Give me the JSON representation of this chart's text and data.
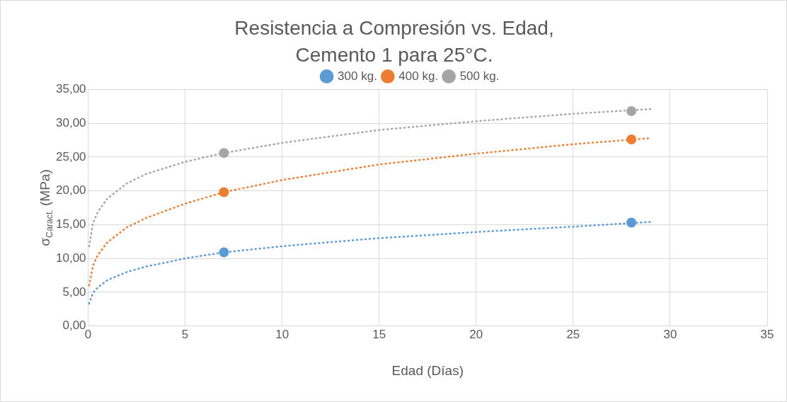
{
  "chart_data": {
    "type": "scatter",
    "title": "Resistencia a Compresión vs. Edad,\nCemento 1 para 25°C.",
    "xlabel": "Edad (Días)",
    "ylabel": "σ$_{Caract.}$ (MPa)",
    "xlim": [
      0,
      35
    ],
    "xticks": [
      0,
      5,
      10,
      15,
      20,
      25,
      30,
      35
    ],
    "ylim": [
      0,
      35
    ],
    "yticks": [
      {
        "value": 0,
        "label": "0,00"
      },
      {
        "value": 5,
        "label": "5,00"
      },
      {
        "value": 10,
        "label": "10,00"
      },
      {
        "value": 15,
        "label": "15,00"
      },
      {
        "value": 20,
        "label": "20,00"
      },
      {
        "value": 25,
        "label": "25,00"
      },
      {
        "value": 30,
        "label": "30,00"
      },
      {
        "value": 35,
        "label": "35,00"
      }
    ],
    "grid": true,
    "legend": "top",
    "marker": "circle",
    "series": [
      {
        "name": "300 kg.",
        "color": "#5b9bd5",
        "x": [
          7,
          28
        ],
        "values": [
          10.9,
          15.3
        ]
      },
      {
        "name": "400 kg.",
        "color": "#ed7d31",
        "x": [
          7,
          28
        ],
        "values": [
          19.8,
          27.6
        ]
      },
      {
        "name": "500 kg.",
        "color": "#a5a5a5",
        "x": [
          7,
          28
        ],
        "values": [
          25.6,
          31.8
        ]
      },
      {
        "type": "line",
        "color": "#5b9bd5",
        "line_style": "dotted",
        "marker": "none",
        "x": [
          0.05,
          0.25,
          0.5,
          1,
          2,
          3,
          5,
          7,
          10,
          15,
          20,
          25,
          29
        ],
        "values": [
          3.3,
          4.9,
          5.7,
          6.8,
          8.0,
          8.8,
          10.0,
          10.9,
          11.8,
          13.0,
          13.9,
          14.7,
          15.4
        ]
      },
      {
        "type": "line",
        "color": "#ed7d31",
        "line_style": "dotted",
        "marker": "none",
        "x": [
          0.05,
          0.25,
          0.5,
          1,
          2,
          3,
          5,
          7,
          10,
          15,
          20,
          25,
          29
        ],
        "values": [
          6.0,
          8.9,
          10.5,
          12.4,
          14.6,
          16.0,
          18.1,
          19.8,
          21.6,
          23.9,
          25.5,
          26.9,
          27.8
        ]
      },
      {
        "type": "line",
        "color": "#a5a5a5",
        "line_style": "dotted",
        "marker": "none",
        "x": [
          0.05,
          0.25,
          0.5,
          1,
          2,
          3,
          5,
          7,
          10,
          15,
          20,
          25,
          29
        ],
        "values": [
          11.8,
          15.2,
          16.9,
          18.9,
          21.1,
          22.5,
          24.3,
          25.6,
          27.1,
          29.0,
          30.3,
          31.4,
          32.1
        ]
      }
    ]
  }
}
